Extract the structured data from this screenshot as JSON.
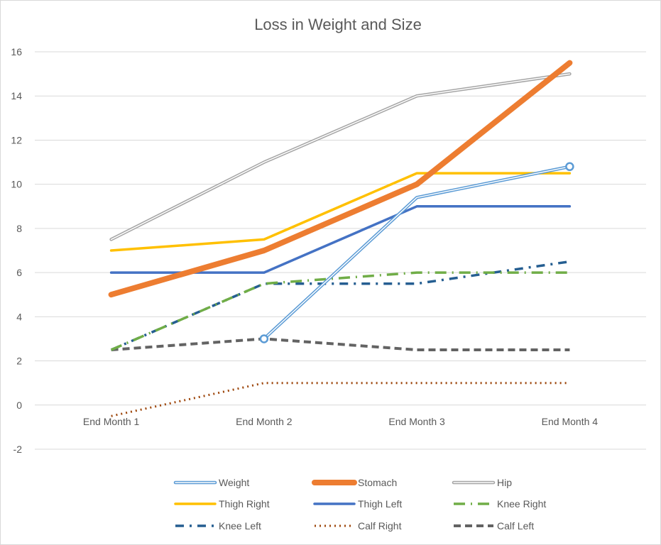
{
  "chart_data": {
    "type": "line",
    "title": "Loss in Weight and Size",
    "xlabel": "",
    "ylabel": "",
    "categories": [
      "End Month 1",
      "End Month 2",
      "End Month 3",
      "End Month 4"
    ],
    "ylim": [
      -2,
      16
    ],
    "yticks": [
      -2,
      0,
      2,
      4,
      6,
      8,
      10,
      12,
      14,
      16
    ],
    "grid": true,
    "legend_position": "bottom",
    "series": [
      {
        "name": "Weight",
        "values": [
          null,
          3,
          9.4,
          10.8
        ],
        "color": "#5b9bd5",
        "style": "double"
      },
      {
        "name": "Stomach",
        "values": [
          5,
          7,
          10,
          15.5
        ],
        "color": "#ed7d31",
        "style": "thick"
      },
      {
        "name": "Hip",
        "values": [
          7.5,
          11,
          14,
          15
        ],
        "color": "#a5a5a5",
        "style": "double"
      },
      {
        "name": "Thigh Right",
        "values": [
          7,
          7.5,
          10.5,
          10.5
        ],
        "color": "#ffc000",
        "style": "solid"
      },
      {
        "name": "Thigh Left",
        "values": [
          6,
          6,
          9,
          9
        ],
        "color": "#4472c4",
        "style": "solid"
      },
      {
        "name": "Knee Right",
        "values": [
          2.5,
          5.5,
          6,
          6
        ],
        "color": "#70ad47",
        "style": "longdashdot"
      },
      {
        "name": "Knee Left",
        "values": [
          2.5,
          5.5,
          5.5,
          6.5
        ],
        "color": "#255e91",
        "style": "dashdot"
      },
      {
        "name": "Calf Right",
        "values": [
          -0.5,
          1,
          1,
          1
        ],
        "color": "#9e480e",
        "style": "dotted"
      },
      {
        "name": "Calf Left",
        "values": [
          2.5,
          3,
          2.5,
          2.5
        ],
        "color": "#636363",
        "style": "dashed"
      }
    ]
  }
}
